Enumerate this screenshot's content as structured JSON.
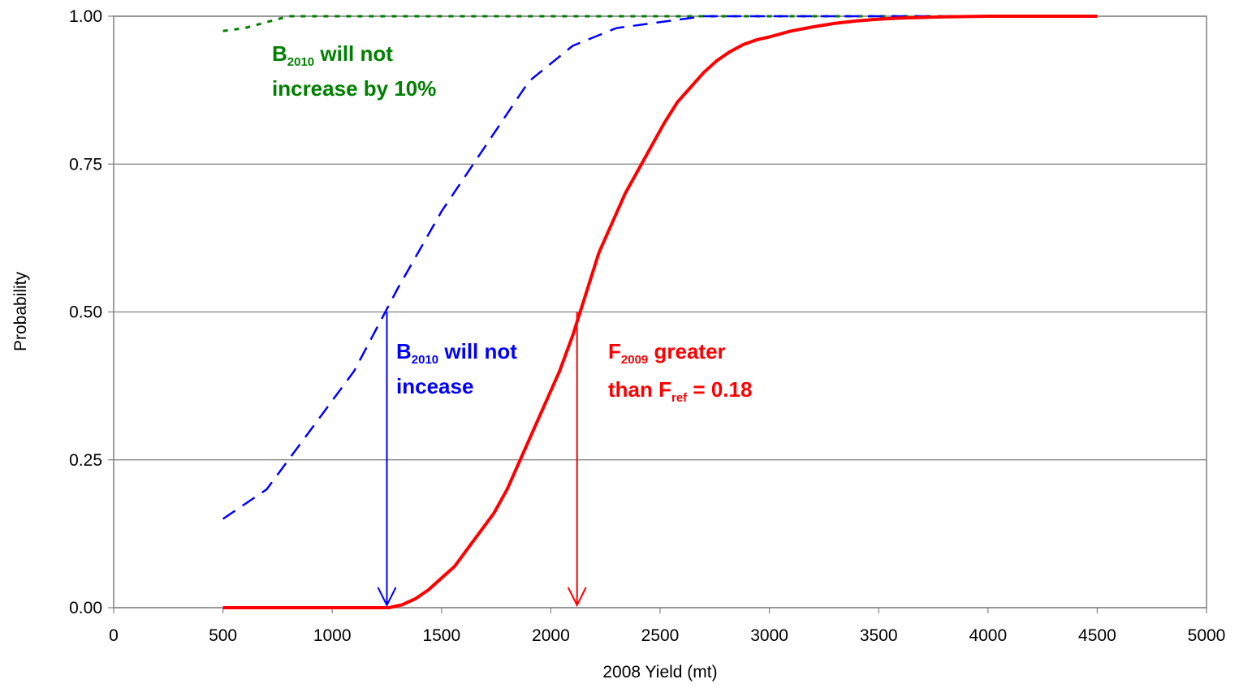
{
  "chart_data": {
    "type": "line",
    "xlabel": "2008 Yield (mt)",
    "ylabel": "Probability",
    "xlim": [
      0,
      5000
    ],
    "ylim": [
      0,
      1
    ],
    "x_ticks": [
      "0",
      "500",
      "1000",
      "1500",
      "2000",
      "2500",
      "3000",
      "3500",
      "4000",
      "4500",
      "5000"
    ],
    "y_ticks": [
      "0.00",
      "0.25",
      "0.50",
      "0.75",
      "1.00"
    ],
    "grid": "horizontal",
    "series": [
      {
        "style": "dotted",
        "color": "#008000",
        "x": [
          500,
          600,
          700,
          800,
          900,
          1000,
          1200,
          1500,
          2000,
          2500,
          3000,
          3500,
          4000,
          4500
        ],
        "y": [
          0.975,
          0.98,
          0.99,
          1.0,
          1.0,
          1.0,
          1.0,
          1.0,
          1.0,
          1.0,
          1.0,
          1.0,
          1.0,
          1.0
        ]
      },
      {
        "style": "dashed",
        "color": "#0000FF",
        "x": [
          500,
          700,
          900,
          1100,
          1300,
          1500,
          1700,
          1900,
          2100,
          2300,
          2500,
          2700,
          2900,
          3200,
          3600,
          4000,
          4500
        ],
        "y": [
          0.15,
          0.2,
          0.3,
          0.4,
          0.54,
          0.67,
          0.78,
          0.89,
          0.95,
          0.98,
          0.99,
          1.0,
          1.0,
          1.0,
          1.0,
          1.0,
          1.0
        ]
      },
      {
        "style": "solid",
        "color": "#FF0000",
        "x": [
          500,
          1000,
          1200,
          1260,
          1320,
          1380,
          1440,
          1500,
          1560,
          1620,
          1680,
          1740,
          1800,
          1860,
          1920,
          1980,
          2040,
          2100,
          2160,
          2220,
          2280,
          2340,
          2400,
          2460,
          2520,
          2580,
          2640,
          2700,
          2760,
          2820,
          2880,
          2940,
          3000,
          3100,
          3200,
          3300,
          3400,
          3500,
          3600,
          3700,
          3800,
          4000,
          4200,
          4500
        ],
        "y": [
          0.0,
          0.0,
          0.0,
          0.0,
          0.005,
          0.015,
          0.03,
          0.05,
          0.07,
          0.1,
          0.13,
          0.16,
          0.2,
          0.25,
          0.3,
          0.35,
          0.4,
          0.46,
          0.53,
          0.6,
          0.65,
          0.7,
          0.74,
          0.78,
          0.82,
          0.855,
          0.88,
          0.905,
          0.925,
          0.94,
          0.952,
          0.96,
          0.965,
          0.975,
          0.982,
          0.988,
          0.992,
          0.995,
          0.997,
          0.998,
          0.999,
          1.0,
          1.0,
          1.0
        ]
      }
    ],
    "arrows": [
      {
        "color": "#0000FF",
        "x": 1250,
        "y_from": 0.5,
        "y_to": 0.0
      },
      {
        "color": "#FF0000",
        "x": 2120,
        "y_from": 0.5,
        "y_to": 0.0
      }
    ],
    "annotations": [
      {
        "color": "#008000",
        "line1_main": "B",
        "line1_sub": "2010",
        "line1_rest": " will not",
        "line2": "increase by 10%"
      },
      {
        "color": "#0000FF",
        "line1_main": "B",
        "line1_sub": "2010",
        "line1_rest": " will not",
        "line2": "incease"
      },
      {
        "color": "#FF0000",
        "line1_main": "F",
        "line1_sub": "2009",
        "line1_rest": " greater",
        "line2_main": "than F",
        "line2_sub": "ref",
        "line2_rest": " = 0.18"
      }
    ]
  }
}
